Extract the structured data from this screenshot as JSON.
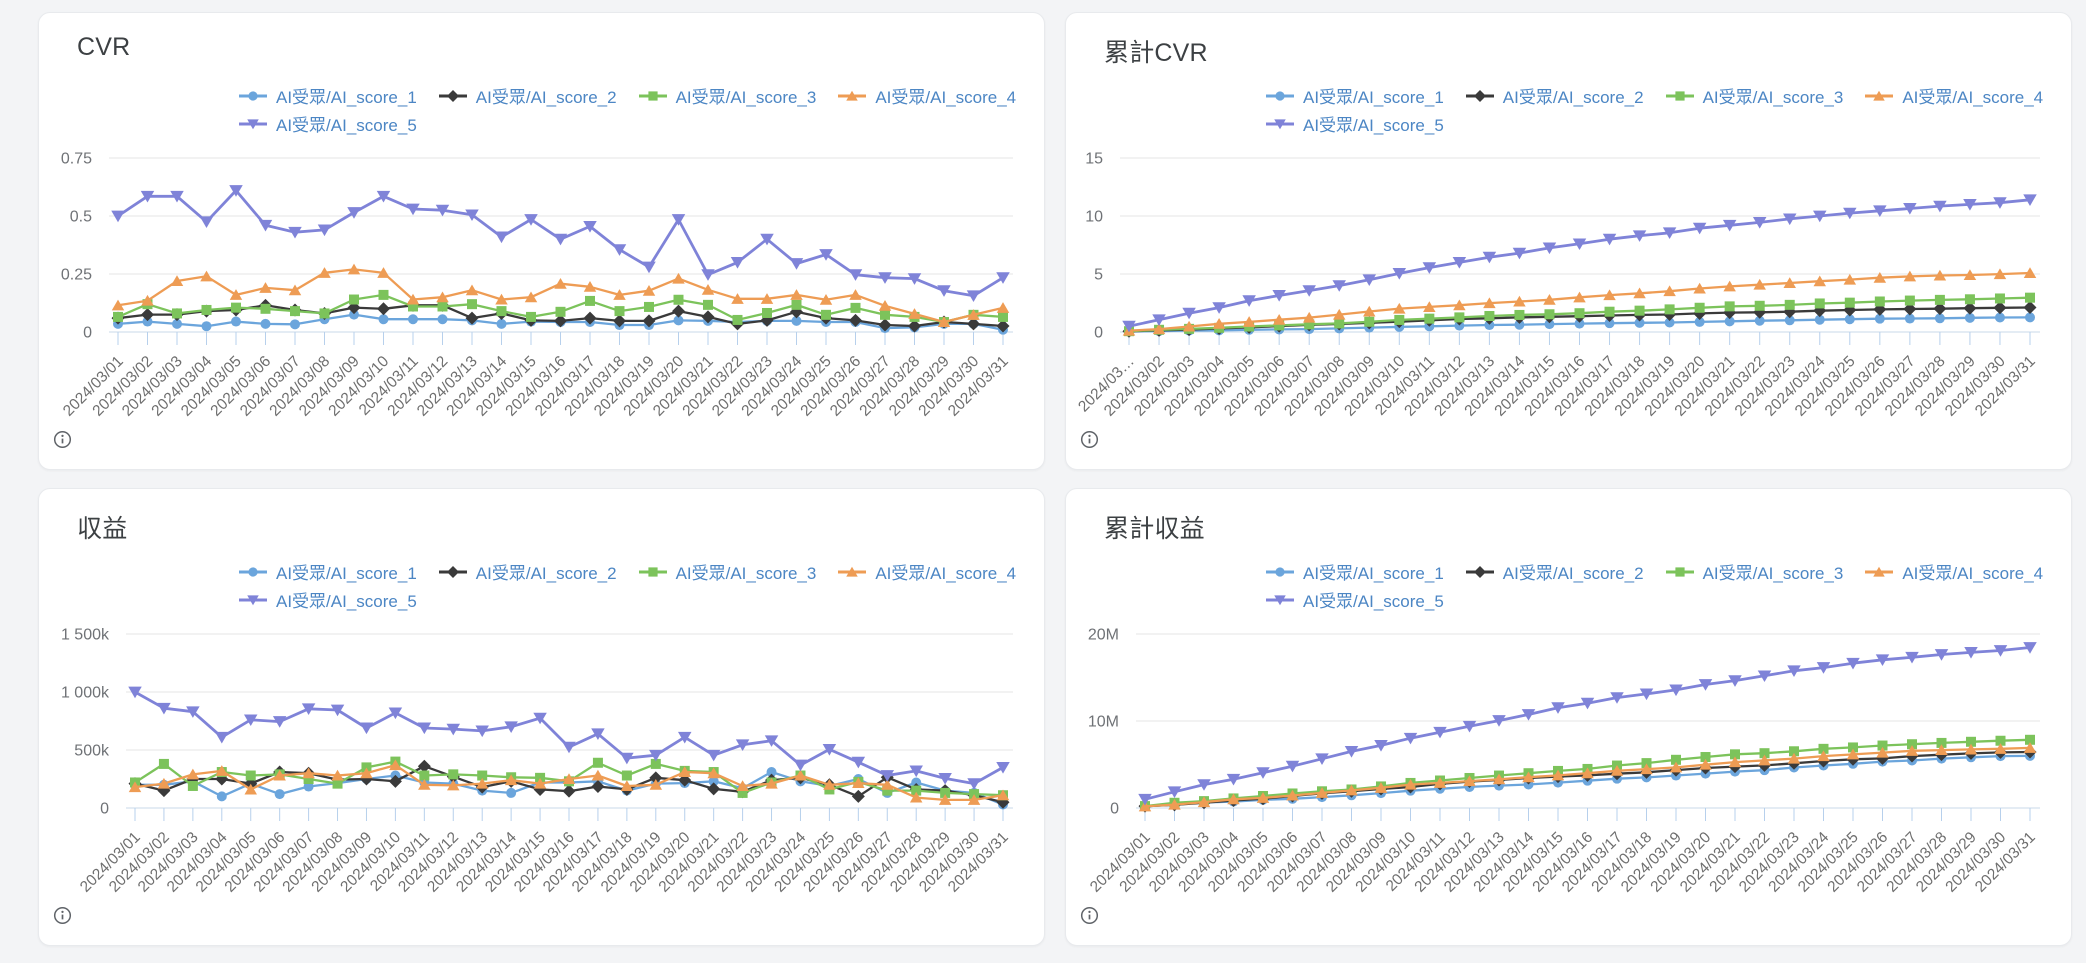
{
  "colors": {
    "page_bg": "#F3F4F6",
    "card_bg": "#FFFFFF",
    "card_border": "#E8EAED",
    "title_text": "#3C4043",
    "legend_text": "#4C86C4",
    "axis_text": "#6F7276",
    "date_text": "#6E6E6E",
    "gridline": "#E4E4E4",
    "axis_line": "#C9D8E9",
    "tick": "#B7D0EC",
    "info_icon": "#5F6368"
  },
  "series_meta": [
    {
      "name": "AI受眾/AI_score_1",
      "color": "#6BA5DC",
      "marker": "circle",
      "icon": "circle-marker-icon"
    },
    {
      "name": "AI受眾/AI_score_2",
      "color": "#3A3A3A",
      "marker": "diamond",
      "icon": "diamond-marker-icon"
    },
    {
      "name": "AI受眾/AI_score_3",
      "color": "#7CC35B",
      "marker": "square",
      "icon": "square-marker-icon"
    },
    {
      "name": "AI受眾/AI_score_4",
      "color": "#EE9C54",
      "marker": "triangle-up",
      "icon": "triangle-up-marker-icon"
    },
    {
      "name": "AI受眾/AI_score_5",
      "color": "#7F83D8",
      "marker": "triangle-down",
      "icon": "triangle-down-marker-icon"
    }
  ],
  "dates": [
    "2024/03/01",
    "2024/03/02",
    "2024/03/03",
    "2024/03/04",
    "2024/03/05",
    "2024/03/06",
    "2024/03/07",
    "2024/03/08",
    "2024/03/09",
    "2024/03/10",
    "2024/03/11",
    "2024/03/12",
    "2024/03/13",
    "2024/03/14",
    "2024/03/15",
    "2024/03/16",
    "2024/03/17",
    "2024/03/18",
    "2024/03/19",
    "2024/03/20",
    "2024/03/21",
    "2024/03/22",
    "2024/03/23",
    "2024/03/24",
    "2024/03/25",
    "2024/03/26",
    "2024/03/27",
    "2024/03/28",
    "2024/03/29",
    "2024/03/30",
    "2024/03/31"
  ],
  "chart_data": [
    {
      "type": "line",
      "title": "CVR",
      "categories_key": "dates",
      "ylim": [
        0,
        0.75
      ],
      "yticks": [
        "0",
        "0.25",
        "0.5",
        "0.75"
      ],
      "grid": true,
      "legend_position": "top",
      "series": [
        {
          "name": "AI受眾/AI_score_1",
          "values": [
            0.035,
            0.045,
            0.035,
            0.025,
            0.045,
            0.035,
            0.033,
            0.055,
            0.075,
            0.055,
            0.055,
            0.055,
            0.05,
            0.035,
            0.045,
            0.043,
            0.043,
            0.03,
            0.03,
            0.05,
            0.048,
            0.043,
            0.048,
            0.048,
            0.043,
            0.043,
            0.017,
            0.02,
            0.035,
            0.035,
            0.01
          ]
        },
        {
          "name": "AI受眾/AI_score_2",
          "values": [
            0.06,
            0.075,
            0.075,
            0.09,
            0.095,
            0.115,
            0.095,
            0.08,
            0.105,
            0.1,
            0.115,
            0.115,
            0.06,
            0.08,
            0.05,
            0.048,
            0.06,
            0.048,
            0.048,
            0.09,
            0.065,
            0.035,
            0.05,
            0.087,
            0.06,
            0.05,
            0.03,
            0.026,
            0.043,
            0.035,
            0.026
          ]
        },
        {
          "name": "AI受眾/AI_score_3",
          "values": [
            0.065,
            0.12,
            0.08,
            0.095,
            0.105,
            0.1,
            0.09,
            0.08,
            0.14,
            0.16,
            0.11,
            0.11,
            0.12,
            0.09,
            0.065,
            0.087,
            0.134,
            0.09,
            0.108,
            0.139,
            0.117,
            0.052,
            0.082,
            0.117,
            0.074,
            0.104,
            0.074,
            0.065,
            0.043,
            0.074,
            0.065
          ]
        },
        {
          "name": "AI受眾/AI_score_4",
          "values": [
            0.115,
            0.135,
            0.22,
            0.24,
            0.16,
            0.19,
            0.18,
            0.255,
            0.27,
            0.255,
            0.14,
            0.15,
            0.18,
            0.14,
            0.15,
            0.208,
            0.195,
            0.16,
            0.178,
            0.23,
            0.182,
            0.143,
            0.143,
            0.16,
            0.139,
            0.16,
            0.113,
            0.078,
            0.043,
            0.074,
            0.104
          ]
        },
        {
          "name": "AI受眾/AI_score_5",
          "values": [
            0.5,
            0.585,
            0.585,
            0.475,
            0.61,
            0.46,
            0.43,
            0.44,
            0.515,
            0.585,
            0.53,
            0.525,
            0.505,
            0.41,
            0.485,
            0.4,
            0.455,
            0.355,
            0.28,
            0.485,
            0.247,
            0.3,
            0.4,
            0.295,
            0.334,
            0.247,
            0.234,
            0.23,
            0.178,
            0.156,
            0.234
          ]
        }
      ]
    },
    {
      "type": "line",
      "title": "累計CVR",
      "categories_key": "dates",
      "first_label_display": "2024/03…",
      "ylim": [
        0,
        15
      ],
      "yticks": [
        "0",
        "5",
        "10",
        "15"
      ],
      "grid": true,
      "legend_position": "top",
      "series": [
        {
          "name": "AI受眾/AI_score_1",
          "values": [
            0.04,
            0.08,
            0.12,
            0.14,
            0.19,
            0.22,
            0.25,
            0.31,
            0.38,
            0.44,
            0.49,
            0.55,
            0.6,
            0.63,
            0.68,
            0.72,
            0.76,
            0.79,
            0.82,
            0.87,
            0.92,
            0.97,
            1.01,
            1.06,
            1.1,
            1.15,
            1.16,
            1.18,
            1.22,
            1.25,
            1.26
          ]
        },
        {
          "name": "AI受眾/AI_score_2",
          "values": [
            0.06,
            0.14,
            0.21,
            0.3,
            0.4,
            0.51,
            0.61,
            0.69,
            0.79,
            0.89,
            1.01,
            1.12,
            1.18,
            1.26,
            1.31,
            1.36,
            1.42,
            1.47,
            1.51,
            1.6,
            1.67,
            1.7,
            1.75,
            1.84,
            1.9,
            1.95,
            1.98,
            2.01,
            2.05,
            2.09,
            2.11
          ]
        },
        {
          "name": "AI受眾/AI_score_3",
          "values": [
            0.07,
            0.19,
            0.27,
            0.36,
            0.47,
            0.57,
            0.66,
            0.74,
            0.88,
            1.04,
            1.15,
            1.26,
            1.38,
            1.47,
            1.53,
            1.62,
            1.75,
            1.84,
            1.95,
            2.09,
            2.21,
            2.26,
            2.34,
            2.46,
            2.53,
            2.63,
            2.71,
            2.77,
            2.82,
            2.89,
            2.96
          ]
        },
        {
          "name": "AI受眾/AI_score_4",
          "values": [
            0.12,
            0.25,
            0.47,
            0.71,
            0.87,
            1.06,
            1.24,
            1.5,
            1.77,
            2.02,
            2.16,
            2.31,
            2.49,
            2.63,
            2.78,
            2.99,
            3.18,
            3.34,
            3.52,
            3.75,
            3.93,
            4.08,
            4.22,
            4.38,
            4.52,
            4.68,
            4.79,
            4.87,
            4.91,
            4.99,
            5.09
          ]
        },
        {
          "name": "AI受眾/AI_score_5",
          "values": [
            0.5,
            1.05,
            1.62,
            2.1,
            2.7,
            3.15,
            3.57,
            4.0,
            4.5,
            5.05,
            5.55,
            6.0,
            6.45,
            6.8,
            7.25,
            7.6,
            8.0,
            8.3,
            8.55,
            8.95,
            9.2,
            9.45,
            9.75,
            10.0,
            10.25,
            10.45,
            10.65,
            10.85,
            11.0,
            11.15,
            11.4
          ]
        }
      ]
    },
    {
      "type": "line",
      "title": "収益",
      "categories_key": "dates",
      "unit": "k",
      "ylim": [
        0,
        1500
      ],
      "yticks": [
        "0",
        "500k",
        "1 000k",
        "1 500k"
      ],
      "grid": true,
      "legend_position": "top",
      "series": [
        {
          "name": "AI受眾/AI_score_1",
          "values": [
            200,
            200,
            230,
            100,
            210,
            120,
            185,
            215,
            250,
            280,
            220,
            210,
            150,
            130,
            220,
            220,
            230,
            150,
            210,
            215,
            230,
            170,
            310,
            230,
            190,
            250,
            130,
            220,
            150,
            130,
            30
          ]
        },
        {
          "name": "AI受眾/AI_score_2",
          "values": [
            210,
            150,
            250,
            250,
            210,
            310,
            300,
            245,
            250,
            230,
            360,
            270,
            180,
            230,
            160,
            145,
            185,
            160,
            260,
            240,
            165,
            140,
            240,
            260,
            200,
            100,
            265,
            160,
            150,
            110,
            50
          ]
        },
        {
          "name": "AI受眾/AI_score_3",
          "values": [
            220,
            380,
            190,
            310,
            280,
            290,
            250,
            210,
            350,
            400,
            280,
            290,
            280,
            265,
            260,
            230,
            390,
            280,
            380,
            320,
            310,
            130,
            220,
            280,
            160,
            225,
            150,
            150,
            130,
            120,
            110
          ]
        },
        {
          "name": "AI受眾/AI_score_4",
          "values": [
            180,
            210,
            290,
            320,
            160,
            280,
            300,
            280,
            300,
            370,
            200,
            195,
            210,
            240,
            210,
            250,
            280,
            190,
            200,
            310,
            300,
            190,
            210,
            280,
            200,
            215,
            200,
            90,
            70,
            70,
            110
          ]
        },
        {
          "name": "AI受眾/AI_score_5",
          "values": [
            1000,
            860,
            830,
            610,
            760,
            745,
            855,
            845,
            690,
            820,
            690,
            680,
            665,
            700,
            775,
            525,
            640,
            430,
            455,
            610,
            455,
            545,
            580,
            370,
            505,
            395,
            280,
            320,
            255,
            210,
            350
          ]
        }
      ]
    },
    {
      "type": "line",
      "title": "累計収益",
      "categories_key": "dates",
      "unit": "M",
      "ylim": [
        0,
        20
      ],
      "yticks": [
        "0",
        "10M",
        "20M"
      ],
      "grid": true,
      "legend_position": "top",
      "series": [
        {
          "name": "AI受眾/AI_score_1",
          "values": [
            0.2,
            0.4,
            0.63,
            0.73,
            0.94,
            1.06,
            1.25,
            1.46,
            1.71,
            1.99,
            2.21,
            2.42,
            2.57,
            2.7,
            2.92,
            3.14,
            3.37,
            3.52,
            3.73,
            3.95,
            4.18,
            4.35,
            4.66,
            4.89,
            5.08,
            5.33,
            5.46,
            5.68,
            5.83,
            5.96,
            5.99
          ]
        },
        {
          "name": "AI受眾/AI_score_2",
          "values": [
            0.21,
            0.36,
            0.61,
            0.86,
            1.07,
            1.38,
            1.68,
            1.93,
            2.18,
            2.41,
            2.77,
            3.04,
            3.22,
            3.45,
            3.61,
            3.75,
            3.94,
            4.1,
            4.36,
            4.6,
            4.76,
            4.9,
            5.14,
            5.4,
            5.6,
            5.7,
            5.97,
            6.13,
            6.28,
            6.39,
            6.44
          ]
        },
        {
          "name": "AI受眾/AI_score_3",
          "values": [
            0.22,
            0.6,
            0.79,
            1.1,
            1.38,
            1.67,
            1.92,
            2.13,
            2.48,
            2.88,
            3.16,
            3.45,
            3.73,
            4.0,
            4.26,
            4.49,
            4.88,
            5.16,
            5.54,
            5.86,
            6.17,
            6.3,
            6.52,
            6.8,
            6.96,
            7.18,
            7.33,
            7.48,
            7.61,
            7.73,
            7.84
          ]
        },
        {
          "name": "AI受眾/AI_score_4",
          "values": [
            0.18,
            0.39,
            0.68,
            1.0,
            1.16,
            1.44,
            1.74,
            2.02,
            2.32,
            2.69,
            2.89,
            3.09,
            3.3,
            3.54,
            3.75,
            4.0,
            4.28,
            4.47,
            4.67,
            4.98,
            5.28,
            5.47,
            5.68,
            5.96,
            6.16,
            6.37,
            6.57,
            6.66,
            6.73,
            6.8,
            6.91
          ]
        },
        {
          "name": "AI受眾/AI_score_5",
          "values": [
            1.0,
            1.86,
            2.69,
            3.3,
            4.06,
            4.81,
            5.66,
            6.51,
            7.2,
            8.02,
            8.71,
            9.39,
            10.05,
            10.75,
            11.53,
            12.05,
            12.69,
            13.12,
            13.58,
            14.19,
            14.64,
            15.19,
            15.77,
            16.14,
            16.64,
            17.04,
            17.32,
            17.64,
            17.89,
            18.1,
            18.45
          ]
        }
      ]
    }
  ]
}
